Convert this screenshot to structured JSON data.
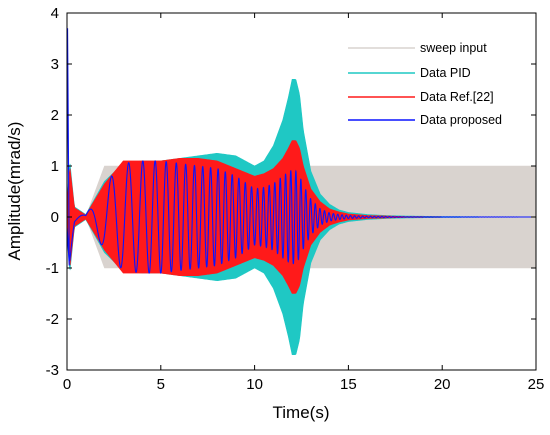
{
  "chart_data": {
    "type": "line",
    "title": "",
    "xlabel": "Time(s)",
    "ylabel": "Amplitude(mrad/s)",
    "xlim": [
      0,
      25
    ],
    "ylim": [
      -3,
      4
    ],
    "xticks": [
      0,
      5,
      10,
      15,
      20,
      25
    ],
    "yticks": [
      -3,
      -2,
      -1,
      0,
      1,
      2,
      3,
      4
    ],
    "grid": false,
    "legend_position": "top-right",
    "series": [
      {
        "name": "sweep input",
        "color": "#d9d3cf",
        "render": "band",
        "envelope_x": [
          0.0,
          1.0,
          2.0,
          3.0,
          4.0,
          5.0,
          6.0,
          7.0,
          8.0,
          9.0,
          10.0,
          11.0,
          12.0,
          13.0,
          14.0,
          15.0,
          16.0,
          17.0,
          18.0,
          19.0,
          20.0,
          21.0,
          22.0,
          23.0,
          24.0,
          25.0
        ],
        "envelope_amplitude": [
          0,
          0,
          1,
          1,
          1,
          1,
          1,
          1,
          1,
          1,
          1,
          1,
          1,
          1,
          1,
          1,
          1,
          1,
          1,
          1,
          1,
          1,
          1,
          1,
          1,
          1
        ]
      },
      {
        "name": "Data PID",
        "color": "#1fc8c4",
        "render": "band",
        "envelope_x": [
          0.0,
          0.15,
          0.4,
          1.0,
          2.0,
          3.0,
          4.0,
          5.0,
          6.0,
          7.0,
          8.0,
          9.0,
          10.0,
          10.5,
          11.0,
          11.5,
          11.8,
          12.0,
          12.2,
          12.4,
          12.6,
          13.0,
          13.5,
          14.0,
          14.5,
          15.0,
          16.0,
          17.0,
          18.0,
          20.0,
          22.0,
          25.0
        ],
        "envelope_amplitude": [
          0.3,
          1.1,
          0.2,
          0.05,
          0.7,
          1.05,
          1.1,
          1.1,
          1.15,
          1.2,
          1.25,
          1.2,
          1.0,
          1.1,
          1.4,
          1.9,
          2.35,
          2.7,
          2.7,
          2.4,
          1.7,
          0.9,
          0.45,
          0.25,
          0.14,
          0.09,
          0.05,
          0.03,
          0.02,
          0.01,
          0.005,
          0.0
        ]
      },
      {
        "name": "Data Ref.[22]",
        "color": "#ff1a1a",
        "render": "band",
        "envelope_x": [
          0.0,
          0.15,
          0.4,
          1.0,
          2.0,
          3.0,
          4.0,
          5.0,
          6.0,
          7.0,
          8.0,
          9.0,
          10.0,
          10.5,
          11.0,
          11.5,
          11.8,
          12.0,
          12.2,
          12.4,
          12.6,
          13.0,
          13.5,
          14.0,
          14.5,
          15.0,
          16.0,
          17.0,
          18.0,
          20.0,
          22.0,
          25.0
        ],
        "envelope_amplitude": [
          0.25,
          1.0,
          0.18,
          0.04,
          0.65,
          1.1,
          1.1,
          1.1,
          1.15,
          1.15,
          1.1,
          0.95,
          0.8,
          0.85,
          0.95,
          1.15,
          1.35,
          1.5,
          1.5,
          1.35,
          1.0,
          0.55,
          0.3,
          0.16,
          0.1,
          0.06,
          0.03,
          0.02,
          0.01,
          0.005,
          0.002,
          0.0
        ]
      },
      {
        "name": "Data proposed",
        "color": "#0a14ff",
        "render": "oscillation",
        "envelope_x": [
          0.0,
          0.15,
          0.4,
          1.0,
          2.0,
          3.0,
          4.0,
          5.0,
          6.0,
          7.0,
          8.0,
          9.0,
          10.0,
          10.5,
          11.0,
          11.5,
          11.8,
          12.0,
          12.2,
          12.4,
          12.6,
          13.0,
          13.5,
          14.0,
          14.5,
          15.0,
          16.0,
          17.0,
          18.0,
          20.0,
          22.0,
          25.0
        ],
        "envelope_amplitude": [
          0.2,
          0.9,
          0.15,
          0.03,
          0.65,
          1.05,
          1.1,
          1.1,
          1.05,
          1.0,
          0.95,
          0.8,
          0.55,
          0.58,
          0.65,
          0.8,
          0.88,
          0.92,
          0.9,
          0.8,
          0.62,
          0.35,
          0.16,
          0.08,
          0.05,
          0.03,
          0.015,
          0.01,
          0.005,
          0.002,
          0.001,
          0.0
        ],
        "peak_at_start": {
          "x": 0.03,
          "y": 3.7
        },
        "dip_at_start": {
          "x": 0.12,
          "y": -0.95
        }
      }
    ],
    "sweep_input": {
      "freq_start_hz": 0.3,
      "freq_rate_hz_per_s": 0.28,
      "amplitude": 1.0
    }
  }
}
